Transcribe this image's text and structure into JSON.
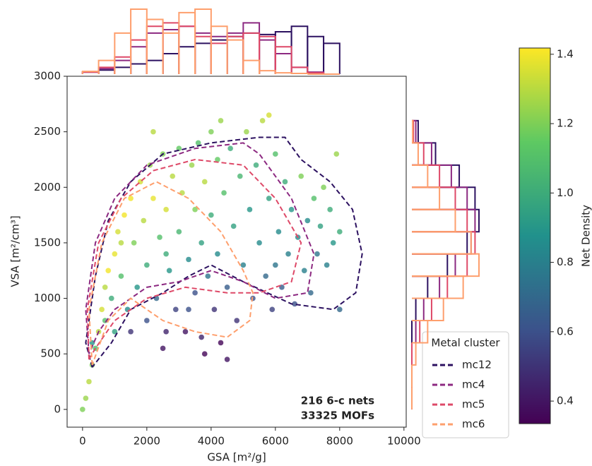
{
  "chart_data": {
    "type": "scatter",
    "xlabel": "GSA [m²/g]",
    "ylabel": "VSA [m²/cm³]",
    "xlim": [
      -480,
      10070
    ],
    "xticks": [
      0,
      2000,
      4000,
      6000,
      8000,
      10000
    ],
    "ylim": [
      -160,
      3000
    ],
    "yticks": [
      0,
      500,
      1000,
      1500,
      2000,
      2500,
      3000
    ],
    "annotations": [
      "216 6-c nets",
      "33325 MOFs"
    ],
    "colormap": "viridis",
    "colorbar_label": "Net Density",
    "clim": [
      0.335,
      1.418
    ],
    "colorbar_ticks": [
      0.4,
      0.6,
      0.8,
      {
        "value": 1.0,
        "label": "1.0"
      },
      1.2,
      1.4
    ],
    "points": {
      "x": [
        0,
        100,
        200,
        300,
        400,
        500,
        300,
        600,
        700,
        800,
        900,
        1000,
        1100,
        1200,
        1300,
        1400,
        1500,
        1600,
        1700,
        1800,
        1900,
        2000,
        2000,
        2100,
        2200,
        2300,
        2400,
        2500,
        2600,
        2600,
        2700,
        2800,
        2900,
        3000,
        3000,
        3100,
        3200,
        3300,
        3400,
        3500,
        3500,
        3600,
        3700,
        3700,
        3800,
        3900,
        4000,
        4000,
        4100,
        4200,
        4200,
        4300,
        4400,
        4500,
        4600,
        4700,
        4800,
        4900,
        5000,
        5100,
        5200,
        5300,
        5400,
        5500,
        5600,
        5700,
        5800,
        5900,
        6000,
        6100,
        6200,
        6300,
        6400,
        6500,
        6600,
        6700,
        6800,
        6900,
        7000,
        7100,
        7200,
        7300,
        7400,
        7500,
        7600,
        7700,
        7800,
        7900,
        8000,
        8000,
        1500,
        2500,
        3800,
        4500,
        2200,
        4300,
        5800,
        2600,
        1200,
        3300,
        6000,
        700,
        1000
      ],
      "y": [
        0,
        100,
        250,
        400,
        550,
        700,
        600,
        900,
        1100,
        1250,
        1000,
        1400,
        1600,
        1200,
        1750,
        900,
        1900,
        1500,
        1100,
        2050,
        1700,
        800,
        1300,
        2200,
        1900,
        1000,
        1550,
        2300,
        700,
        1800,
        1250,
        2100,
        900,
        1600,
        2350,
        1950,
        700,
        1350,
        2200,
        1050,
        1800,
        2400,
        650,
        1500,
        2050,
        1200,
        2500,
        1750,
        900,
        2250,
        1400,
        600,
        1950,
        1100,
        2350,
        1650,
        800,
        2100,
        1300,
        2500,
        1800,
        1000,
        2200,
        1500,
        2600,
        1200,
        1900,
        900,
        2300,
        1600,
        1100,
        2050,
        1400,
        1800,
        950,
        1550,
        2100,
        1250,
        1700,
        1050,
        1900,
        1400,
        1650,
        2000,
        1300,
        1800,
        1500,
        2300,
        1600,
        900,
        700,
        550,
        500,
        450,
        2500,
        2600,
        2650,
        1400,
        1500,
        900,
        1300,
        800,
        700
      ],
      "c": [
        1.2,
        1.25,
        1.3,
        1.2,
        1.1,
        1.3,
        0.9,
        1.35,
        1.3,
        1.4,
        1.0,
        1.38,
        1.35,
        1.1,
        1.4,
        0.85,
        1.4,
        1.2,
        0.9,
        1.35,
        1.3,
        0.6,
        1.0,
        1.25,
        1.38,
        0.7,
        1.1,
        1.2,
        0.45,
        1.35,
        0.9,
        1.3,
        0.55,
        1.05,
        1.15,
        1.3,
        0.4,
        0.85,
        1.25,
        0.6,
        1.2,
        1.1,
        0.45,
        0.95,
        1.3,
        0.75,
        1.2,
        1.0,
        0.5,
        1.15,
        0.85,
        0.35,
        1.1,
        0.65,
        1.0,
        0.95,
        0.5,
        1.05,
        0.8,
        1.25,
        0.9,
        0.6,
        1.0,
        0.85,
        1.3,
        0.7,
        0.95,
        0.55,
        1.1,
        0.85,
        0.65,
        1.0,
        0.8,
        0.9,
        0.6,
        0.85,
        1.2,
        0.8,
        0.85,
        0.7,
        1.1,
        0.75,
        0.95,
        1.2,
        0.8,
        1.0,
        0.9,
        1.25,
        1.0,
        0.7,
        0.5,
        0.4,
        0.35,
        0.4,
        1.3,
        1.25,
        1.35,
        1.0,
        1.3,
        0.6,
        0.75,
        1.1,
        0.95
      ]
    },
    "legend_title": "Metal cluster",
    "series": [
      {
        "name": "mc12",
        "color": "#2c1160",
        "contour": {
          "x": [
            300,
            100,
            400,
            800,
            1500,
            2500,
            4000,
            5500,
            6300,
            6800,
            7700,
            8400,
            8700,
            8500,
            7800,
            6500,
            5000,
            4000,
            3300,
            2500,
            1500,
            900,
            300
          ],
          "y": [
            380,
            600,
            1200,
            1700,
            2050,
            2300,
            2400,
            2450,
            2450,
            2250,
            2050,
            1800,
            1400,
            1050,
            900,
            950,
            1150,
            1300,
            1200,
            1050,
            900,
            600,
            380
          ]
        },
        "hist_x": {
          "bins": [
            0,
            500,
            1000,
            1500,
            2000,
            2500,
            3000,
            3500,
            4000,
            4500,
            5000,
            5500,
            6000,
            6500,
            7000,
            7500,
            8000
          ],
          "counts": [
            3,
            6,
            10,
            15,
            20,
            30,
            40,
            45,
            50,
            55,
            60,
            58,
            62,
            70,
            55,
            45
          ]
        },
        "hist_y": {
          "bins": [
            0,
            200,
            400,
            600,
            800,
            1000,
            1200,
            1400,
            1600,
            1800,
            2000,
            2200,
            2400,
            2600
          ],
          "counts": [
            0,
            0,
            0,
            0,
            5,
            20,
            45,
            70,
            85,
            80,
            60,
            30,
            8
          ]
        }
      },
      {
        "name": "mc4",
        "color": "#8c2981",
        "contour": {
          "x": [
            200,
            100,
            400,
            1000,
            2000,
            3500,
            5000,
            5500,
            6500,
            7200,
            7000,
            6000,
            5000,
            4000,
            3000,
            2000,
            1000,
            500,
            200
          ],
          "y": [
            500,
            900,
            1500,
            1900,
            2200,
            2350,
            2400,
            2300,
            1900,
            1400,
            1050,
            1000,
            1150,
            1250,
            1150,
            1100,
            900,
            700,
            500
          ]
        },
        "hist_x": {
          "bins": [
            0,
            500,
            1000,
            1500,
            2000,
            2500,
            3000,
            3500,
            4000,
            4500,
            5000,
            5500,
            6000,
            6500,
            7000,
            7500,
            8000
          ],
          "counts": [
            3,
            8,
            20,
            40,
            60,
            65,
            70,
            60,
            55,
            60,
            75,
            50,
            30,
            10,
            3,
            0
          ]
        },
        "hist_y": {
          "bins": [
            0,
            200,
            400,
            600,
            800,
            1000,
            1200,
            1400,
            1600,
            1800,
            2000,
            2200,
            2400,
            2600
          ],
          "counts": [
            0,
            0,
            0,
            5,
            15,
            35,
            55,
            75,
            80,
            70,
            50,
            25,
            5
          ]
        }
      },
      {
        "name": "mc5",
        "color": "#de4968",
        "contour": {
          "x": [
            200,
            150,
            500,
            1200,
            2200,
            3500,
            5000,
            6000,
            6800,
            6500,
            5500,
            4500,
            3200,
            2000,
            1000,
            400,
            200
          ],
          "y": [
            450,
            900,
            1500,
            1900,
            2150,
            2250,
            2200,
            1900,
            1500,
            1150,
            1050,
            1050,
            1100,
            1000,
            800,
            550,
            450
          ]
        },
        "hist_x": {
          "bins": [
            0,
            500,
            1000,
            1500,
            2000,
            2500,
            3000,
            3500,
            4000,
            4500,
            5000,
            5500,
            6000,
            6500,
            7000,
            7500,
            8000
          ],
          "counts": [
            3,
            10,
            25,
            50,
            70,
            75,
            70,
            55,
            45,
            55,
            60,
            55,
            40,
            10,
            2,
            0
          ]
        },
        "hist_y": {
          "bins": [
            0,
            200,
            400,
            600,
            800,
            1000,
            1200,
            1400,
            1600,
            1800,
            2000,
            2200,
            2400,
            2600
          ],
          "counts": [
            0,
            0,
            0,
            10,
            25,
            45,
            70,
            80,
            70,
            55,
            35,
            15,
            2
          ]
        }
      },
      {
        "name": "mc6",
        "color": "#fe9f6d",
        "contour": {
          "x": [
            300,
            200,
            600,
            1300,
            2300,
            3300,
            4300,
            5000,
            5300,
            5200,
            4500,
            3500,
            2500,
            1500,
            800,
            300
          ],
          "y": [
            400,
            900,
            1500,
            1900,
            2050,
            1900,
            1600,
            1250,
            1050,
            800,
            650,
            700,
            800,
            1000,
            800,
            400
          ]
        },
        "hist_x": {
          "bins": [
            0,
            500,
            1000,
            1500,
            2000,
            2500,
            3000,
            3500,
            4000,
            4500,
            5000,
            5500,
            6000,
            6500,
            7000,
            7500,
            8000
          ],
          "counts": [
            4,
            20,
            60,
            95,
            80,
            60,
            90,
            95,
            70,
            50,
            20,
            5,
            2,
            1,
            0,
            0
          ]
        },
        "hist_y": {
          "bins": [
            0,
            200,
            400,
            600,
            800,
            1000,
            1200,
            1400,
            1600,
            1800,
            2000,
            2200,
            2400,
            2600
          ],
          "counts": [
            0,
            0,
            5,
            20,
            40,
            65,
            85,
            75,
            55,
            35,
            20,
            8,
            1
          ]
        }
      }
    ]
  }
}
